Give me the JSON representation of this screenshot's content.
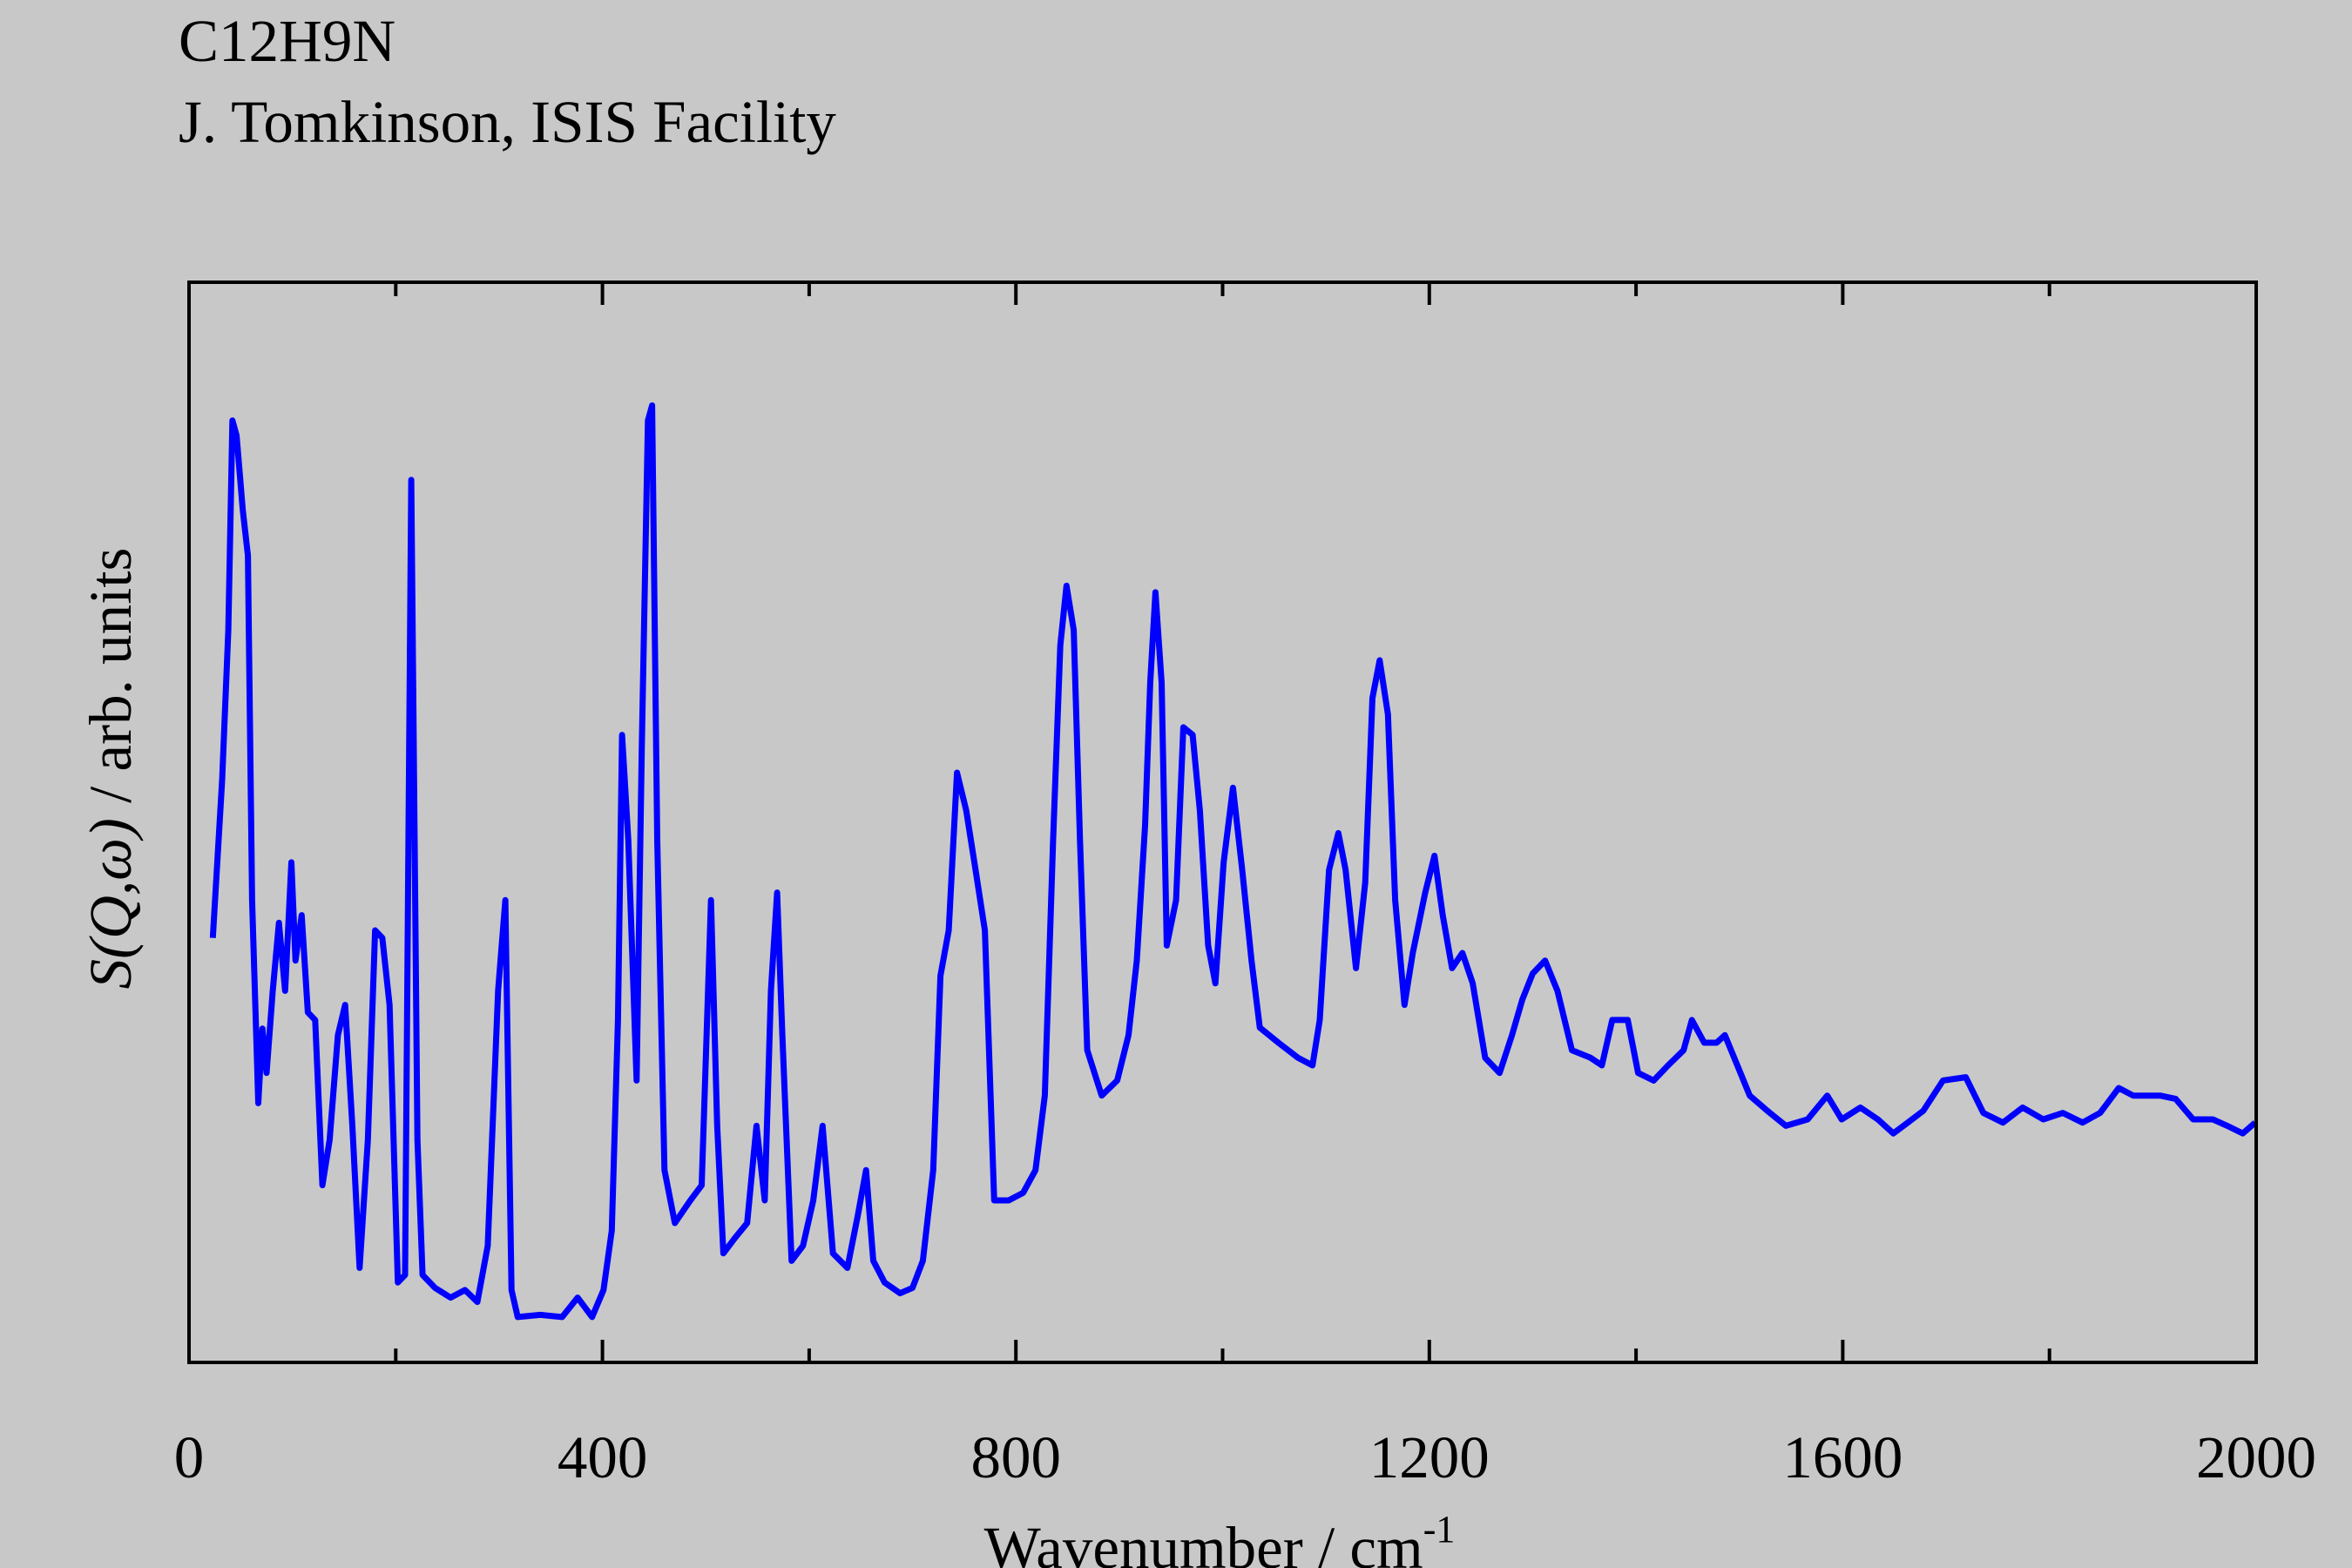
{
  "chart_data": {
    "type": "line",
    "title": "C12H9N",
    "subtitle": "J. Tomkinson, ISIS Facility",
    "xlabel": {
      "text": "Wavenumber / cm",
      "superscript": "-1"
    },
    "ylabel": [
      "S(Q,ω)",
      " / arb. units"
    ],
    "xlim": [
      0,
      2000
    ],
    "ylim": [
      0,
      100
    ],
    "xticks": [
      0,
      400,
      800,
      1200,
      1600,
      2000
    ],
    "xminor_ticks": [
      200,
      600,
      1000,
      1400,
      1800
    ],
    "x": [
      23,
      32,
      38,
      42,
      46,
      52,
      57,
      61,
      67,
      71,
      75,
      81,
      87,
      93,
      99,
      103,
      109,
      115,
      122,
      129,
      136,
      144,
      151,
      158,
      165,
      173,
      180,
      187,
      194,
      202,
      209,
      215,
      221,
      226,
      238,
      253,
      267,
      279,
      289,
      299,
      306,
      312,
      318,
      340,
      361,
      376,
      390,
      401,
      409,
      415,
      419,
      425,
      433,
      438,
      444,
      448,
      453,
      460,
      470,
      485,
      496,
      505,
      511,
      517,
      528,
      540,
      549,
      557,
      563,
      569,
      574,
      583,
      594,
      604,
      613,
      623,
      637,
      647,
      655,
      662,
      673,
      688,
      700,
      710,
      720,
      727,
      735,
      743,
      752,
      761,
      770,
      779,
      793,
      807,
      819,
      828,
      836,
      843,
      849,
      856,
      862,
      869,
      883,
      898,
      909,
      917,
      925,
      930,
      935,
      941,
      946,
      955,
      962,
      971,
      978,
      986,
      993,
      1001,
      1010,
      1019,
      1028,
      1036,
      1054,
      1073,
      1087,
      1094,
      1103,
      1112,
      1119,
      1129,
      1138,
      1145,
      1152,
      1160,
      1167,
      1176,
      1184,
      1196,
      1205,
      1213,
      1222,
      1232,
      1242,
      1254,
      1268,
      1280,
      1290,
      1300,
      1312,
      1324,
      1338,
      1356,
      1367,
      1377,
      1392,
      1402,
      1417,
      1431,
      1446,
      1454,
      1466,
      1478,
      1486,
      1498,
      1510,
      1527,
      1545,
      1566,
      1585,
      1599,
      1617,
      1634,
      1649,
      1663,
      1678,
      1697,
      1719,
      1736,
      1755,
      1774,
      1794,
      1813,
      1832,
      1849,
      1867,
      1881,
      1907,
      1922,
      1939,
      1958,
      1972,
      1987,
      1999
    ],
    "series": [
      {
        "name": "C12H9N",
        "color": "#0000ff",
        "values": [
          39.3,
          53.9,
          67.8,
          87.2,
          85.8,
          78.9,
          74.7,
          42.8,
          24.0,
          30.9,
          26.8,
          34.4,
          40.7,
          34.4,
          46.3,
          37.2,
          41.4,
          32.4,
          31.7,
          16.4,
          20.6,
          30.3,
          33.1,
          21.9,
          8.75,
          20.6,
          40,
          39.3,
          33.1,
          7.4,
          8.1,
          81.7,
          20.6,
          8.1,
          6.9,
          6.0,
          6.7,
          5.6,
          10.8,
          34.4,
          42.8,
          6.7,
          4.2,
          4.4,
          4.2,
          6.0,
          4.2,
          6.7,
          12.2,
          31.7,
          58.1,
          48.3,
          26.1,
          56.7,
          87.2,
          88.6,
          48.3,
          17.8,
          12.9,
          15,
          16.4,
          42.8,
          21.9,
          10.1,
          11.5,
          12.9,
          21.9,
          15,
          34.4,
          43.5,
          30.3,
          9.4,
          10.8,
          15,
          21.9,
          10.1,
          8.75,
          13.6,
          17.8,
          9.4,
          7.4,
          6.4,
          6.9,
          9.4,
          17.8,
          35.8,
          40,
          54.6,
          51.1,
          45.6,
          40,
          15,
          15,
          15.7,
          17.8,
          24.7,
          48.3,
          66.4,
          71.9,
          67.8,
          48.3,
          28.9,
          24.7,
          26.1,
          30.3,
          37.2,
          49.7,
          62.9,
          71.3,
          62.9,
          38.6,
          42.8,
          58.8,
          58.1,
          51.1,
          38.6,
          35.1,
          46.3,
          53.2,
          45.6,
          37.2,
          31,
          29.6,
          28.2,
          27.5,
          31.7,
          45.6,
          49,
          45.6,
          36.5,
          44.4,
          61.5,
          65,
          60,
          42.8,
          33.1,
          37.9,
          43.5,
          46.9,
          41.4,
          36.5,
          37.9,
          35.1,
          28.2,
          26.8,
          30.3,
          33.6,
          36,
          37.2,
          34.4,
          28.9,
          28.2,
          27.5,
          31.7,
          31.7,
          26.8,
          26.1,
          27.5,
          28.9,
          31.7,
          29.6,
          29.6,
          30.3,
          27.5,
          24.7,
          23.3,
          21.9,
          22.5,
          24.7,
          22.5,
          23.6,
          22.5,
          21.2,
          22.2,
          23.3,
          26.1,
          26.4,
          23.1,
          22.2,
          23.6,
          22.5,
          23.1,
          22.2,
          23.1,
          25.4,
          24.7,
          24.7,
          24.4,
          22.5,
          22.5,
          21.9,
          21.2,
          22.2
        ]
      }
    ],
    "grid": false
  }
}
